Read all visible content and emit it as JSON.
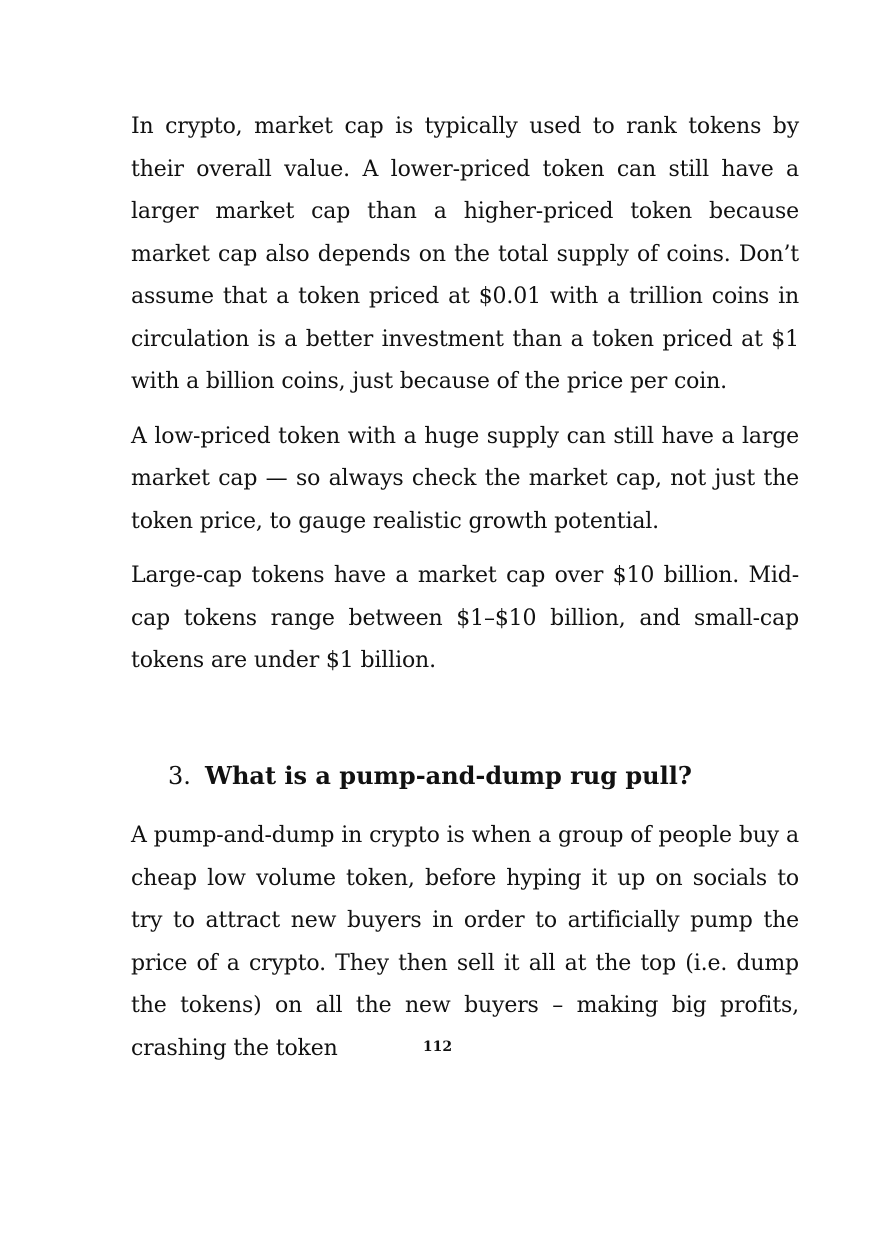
{
  "document": {
    "paragraphs": [
      "In crypto, market cap is typically used to rank tokens by their overall value. A lower-priced token can still have a larger market cap than a higher-priced token because market cap also depends on the total supply of coins. Don’t assume that a token priced at $0.01 with a trillion coins in circulation is a better investment than a token priced at $1 with a billion coins, just because of the price per coin.",
      "A low-priced token with a huge supply can still have a large market cap — so always check the market cap, not just the token price, to gauge realistic growth potential.",
      "Large-cap tokens have a market cap over $10 billion. Mid-cap tokens range between $1–$10 billion, and small-cap tokens are under $1 billion."
    ],
    "section": {
      "number": "3.",
      "title": "What is a pump-and-dump rug pull?",
      "body": "A pump-and-dump in crypto is when a group of people buy a cheap low volume token, before hyping it up on socials to try to attract new buyers in order to artificially pump the price of a crypto. They then sell it all at the top (i.e. dump the tokens) on all the new buyers – making big profits, crashing the token"
    },
    "page_number": "112"
  }
}
